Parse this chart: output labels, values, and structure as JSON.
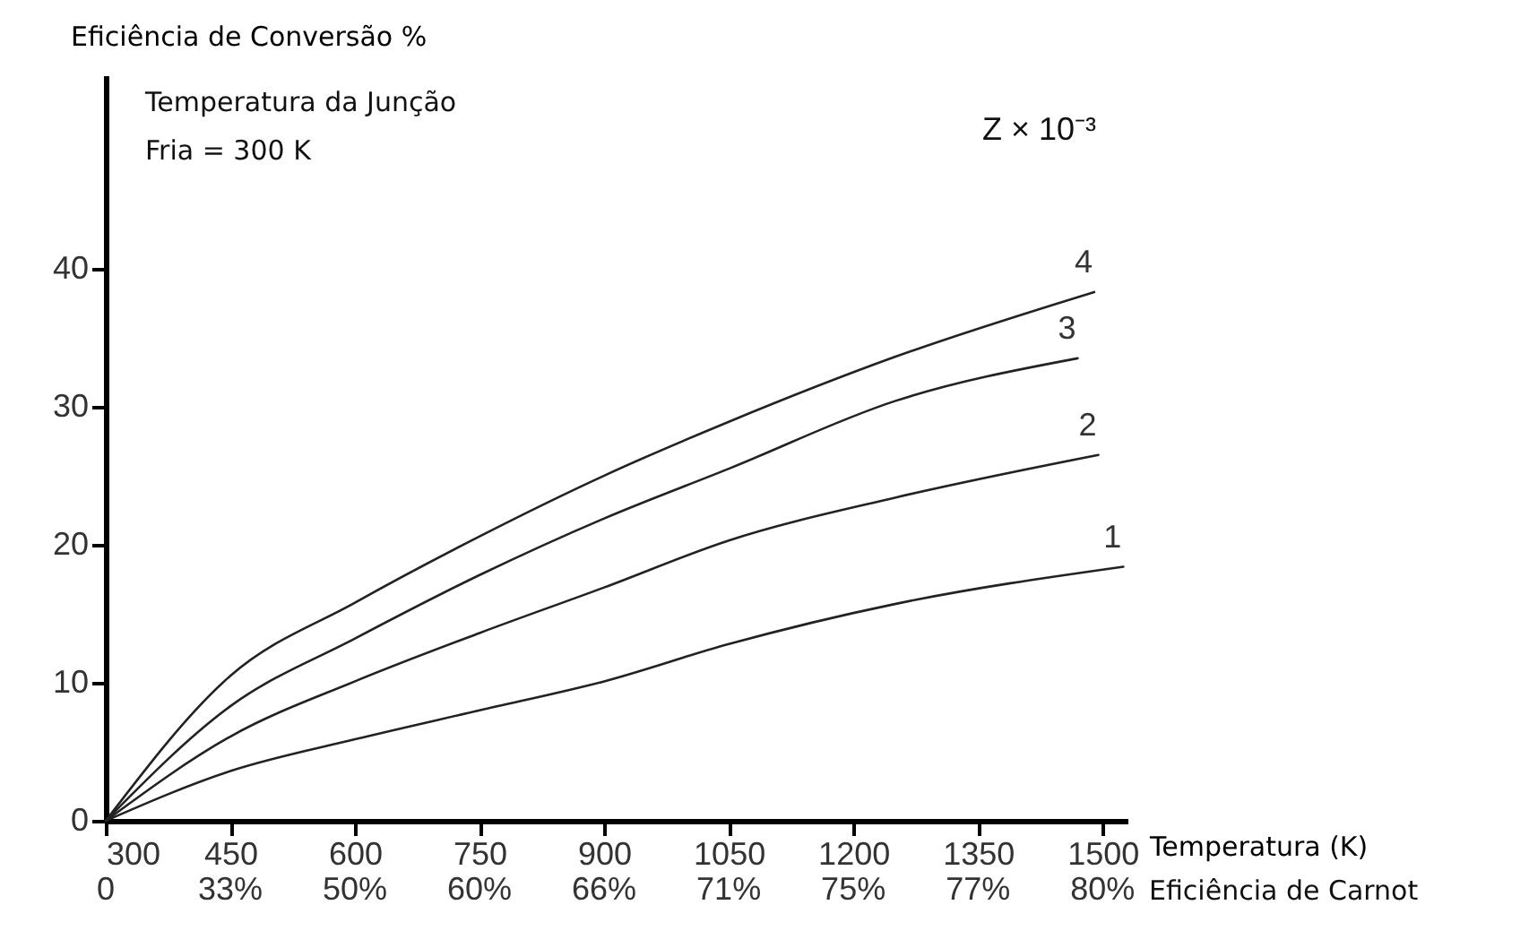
{
  "chart_data": {
    "type": "line",
    "xlabel": "Temperatura (K)",
    "ylabel": "Eficiência de Conversão %",
    "annotations": [
      "Temperatura da Junção\nFria = 300 K",
      "Z × 10⁻³",
      "Eficiência de Carnot",
      "0",
      "33%",
      "50%",
      "60%",
      "66%",
      "71%",
      "75%",
      "77%",
      "80%"
    ],
    "xlim": [
      300,
      1530
    ],
    "xticks": [
      300,
      450,
      600,
      750,
      900,
      1050,
      1200,
      1350,
      1500
    ],
    "ylim": [
      0,
      54
    ],
    "yticks": [
      0,
      10,
      20,
      30,
      40
    ],
    "grid": false,
    "legend": false,
    "marker": "none",
    "line_style": "solid",
    "series": [
      {
        "name": "4",
        "color": "#222222",
        "x": [
          300,
          450,
          600,
          750,
          900,
          1050,
          1250,
          1490
        ],
        "values": [
          0,
          10.5,
          15.8,
          20.6,
          25.0,
          28.9,
          33.6,
          38.3
        ]
      },
      {
        "name": "3",
        "color": "#222222",
        "x": [
          300,
          450,
          600,
          750,
          900,
          1050,
          1250,
          1470
        ],
        "values": [
          0,
          8.3,
          13.2,
          17.8,
          21.9,
          25.5,
          30.4,
          33.5
        ]
      },
      {
        "name": "2",
        "color": "#222222",
        "x": [
          300,
          450,
          600,
          750,
          900,
          1050,
          1250,
          1495
        ],
        "values": [
          0,
          6.1,
          10.1,
          13.6,
          16.9,
          20.3,
          23.4,
          26.5
        ]
      },
      {
        "name": "1",
        "color": "#222222",
        "x": [
          300,
          450,
          600,
          750,
          900,
          1050,
          1250,
          1525
        ],
        "values": [
          0,
          3.6,
          5.9,
          8.0,
          10.1,
          12.8,
          15.7,
          18.4
        ]
      }
    ]
  }
}
